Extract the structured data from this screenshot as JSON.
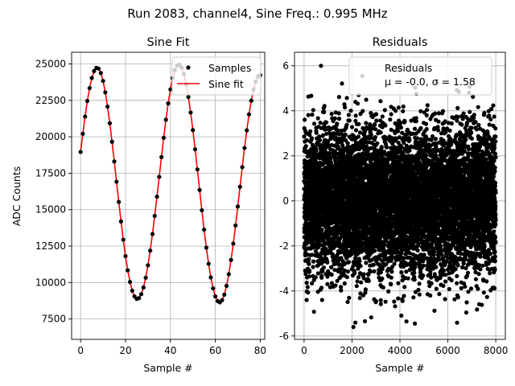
{
  "figure_title": "Run 2083, channel4, Sine Freq.: 0.995 MHz",
  "colors": {
    "fit_line": "#ff0000",
    "samples": "#000000",
    "grid": "#b0b0b0"
  },
  "chart_data": [
    {
      "type": "line",
      "title": "Sine Fit",
      "xlabel": "Sample #",
      "ylabel": "ADC Counts",
      "xlim": [
        -4,
        82
      ],
      "ylim": [
        6100,
        25800
      ],
      "xticks": [
        0,
        20,
        40,
        60,
        80
      ],
      "yticks": [
        7500,
        10000,
        12500,
        15000,
        17500,
        20000,
        22500,
        25000
      ],
      "grid": true,
      "legend_position": "top-right",
      "series": [
        {
          "name": "Samples",
          "style": "scatter",
          "x": [
            0,
            1,
            2,
            3,
            4,
            5,
            6,
            7,
            8,
            9,
            10,
            11,
            12,
            13,
            14,
            15,
            16,
            17,
            18,
            19,
            20,
            21,
            22,
            23,
            24,
            25,
            26,
            27,
            28,
            29,
            30,
            31,
            32,
            33,
            34,
            35,
            36,
            37,
            38,
            39,
            40,
            41,
            42,
            43,
            44,
            45,
            46,
            47,
            48,
            49,
            50,
            51,
            52,
            53,
            54,
            55,
            56,
            57,
            58,
            59,
            60,
            61,
            62,
            63,
            64,
            65,
            66,
            67,
            68,
            69,
            70,
            71,
            72,
            73,
            74,
            75,
            76,
            77,
            78,
            79,
            80
          ],
          "y": [
            18960,
            20210,
            21390,
            22460,
            23340,
            24040,
            24510,
            24730,
            24680,
            24380,
            23830,
            23050,
            22070,
            20930,
            19660,
            18310,
            16920,
            15530,
            14190,
            12940,
            11810,
            10840,
            10040,
            9440,
            9050,
            8880,
            8930,
            9200,
            9660,
            10330,
            11180,
            12190,
            13330,
            14570,
            15890,
            17250,
            18610,
            19930,
            21170,
            22290,
            23250,
            24030,
            24580,
            24890,
            24950,
            24750,
            24300,
            23620,
            22730,
            21670,
            20460,
            19140,
            17760,
            16350,
            14960,
            13630,
            12390,
            11290,
            10350,
            9600,
            9050,
            8730,
            8640,
            8790,
            9170,
            9770,
            10570,
            11550,
            12670,
            13910,
            15220,
            16570,
            17920,
            19230,
            20440,
            21540,
            22480,
            23240,
            23790,
            24130,
            24230
          ]
        },
        {
          "name": "Sine fit",
          "style": "line",
          "x": [
            0,
            1,
            2,
            3,
            4,
            5,
            6,
            7,
            8,
            9,
            10,
            11,
            12,
            13,
            14,
            15,
            16,
            17,
            18,
            19,
            20,
            21,
            22,
            23,
            24,
            25,
            26,
            27,
            28,
            29,
            30,
            31,
            32,
            33,
            34,
            35,
            36,
            37,
            38,
            39,
            40,
            41,
            42,
            43,
            44,
            45,
            46,
            47,
            48,
            49,
            50,
            51,
            52,
            53,
            54,
            55,
            56,
            57,
            58,
            59,
            60,
            61,
            62,
            63,
            64,
            65,
            66,
            67,
            68,
            69,
            70,
            71,
            72,
            73,
            74,
            75,
            76,
            77,
            78,
            79,
            80
          ],
          "y": [
            18960,
            20210,
            21390,
            22460,
            23340,
            24040,
            24510,
            24730,
            24680,
            24380,
            23830,
            23050,
            22070,
            20930,
            19660,
            18310,
            16920,
            15530,
            14190,
            12940,
            11810,
            10840,
            10040,
            9440,
            9050,
            8880,
            8930,
            9200,
            9660,
            10330,
            11180,
            12190,
            13330,
            14570,
            15890,
            17250,
            18610,
            19930,
            21170,
            22290,
            23250,
            24030,
            24580,
            24890,
            24950,
            24750,
            24300,
            23620,
            22730,
            21670,
            20460,
            19140,
            17760,
            16350,
            14960,
            13630,
            12390,
            11290,
            10350,
            9600,
            9050,
            8730,
            8640,
            8790,
            9170,
            9770,
            10570,
            11550,
            12670,
            13910,
            15220,
            16570,
            17920,
            19230,
            20440,
            21540,
            22480,
            23240,
            23790,
            24130,
            24230
          ]
        }
      ]
    },
    {
      "type": "scatter",
      "title": "Residuals",
      "xlabel": "Sample #",
      "ylabel": "",
      "xlim": [
        -400,
        8400
      ],
      "ylim": [
        -6.15,
        6.6
      ],
      "xticks": [
        0,
        2000,
        4000,
        6000,
        8000
      ],
      "yticks": [
        -6,
        -4,
        -2,
        0,
        2,
        4,
        6
      ],
      "grid": true,
      "legend_position": "top-right",
      "series": [
        {
          "name": "Residuals",
          "point_count": 8000,
          "distribution": {
            "type": "normal",
            "mean": -0.0,
            "std": 1.58
          },
          "x_range": [
            0,
            8000
          ]
        }
      ],
      "legend_entries": [
        "Residuals",
        "μ = -0.0, σ = 1.58"
      ]
    }
  ]
}
